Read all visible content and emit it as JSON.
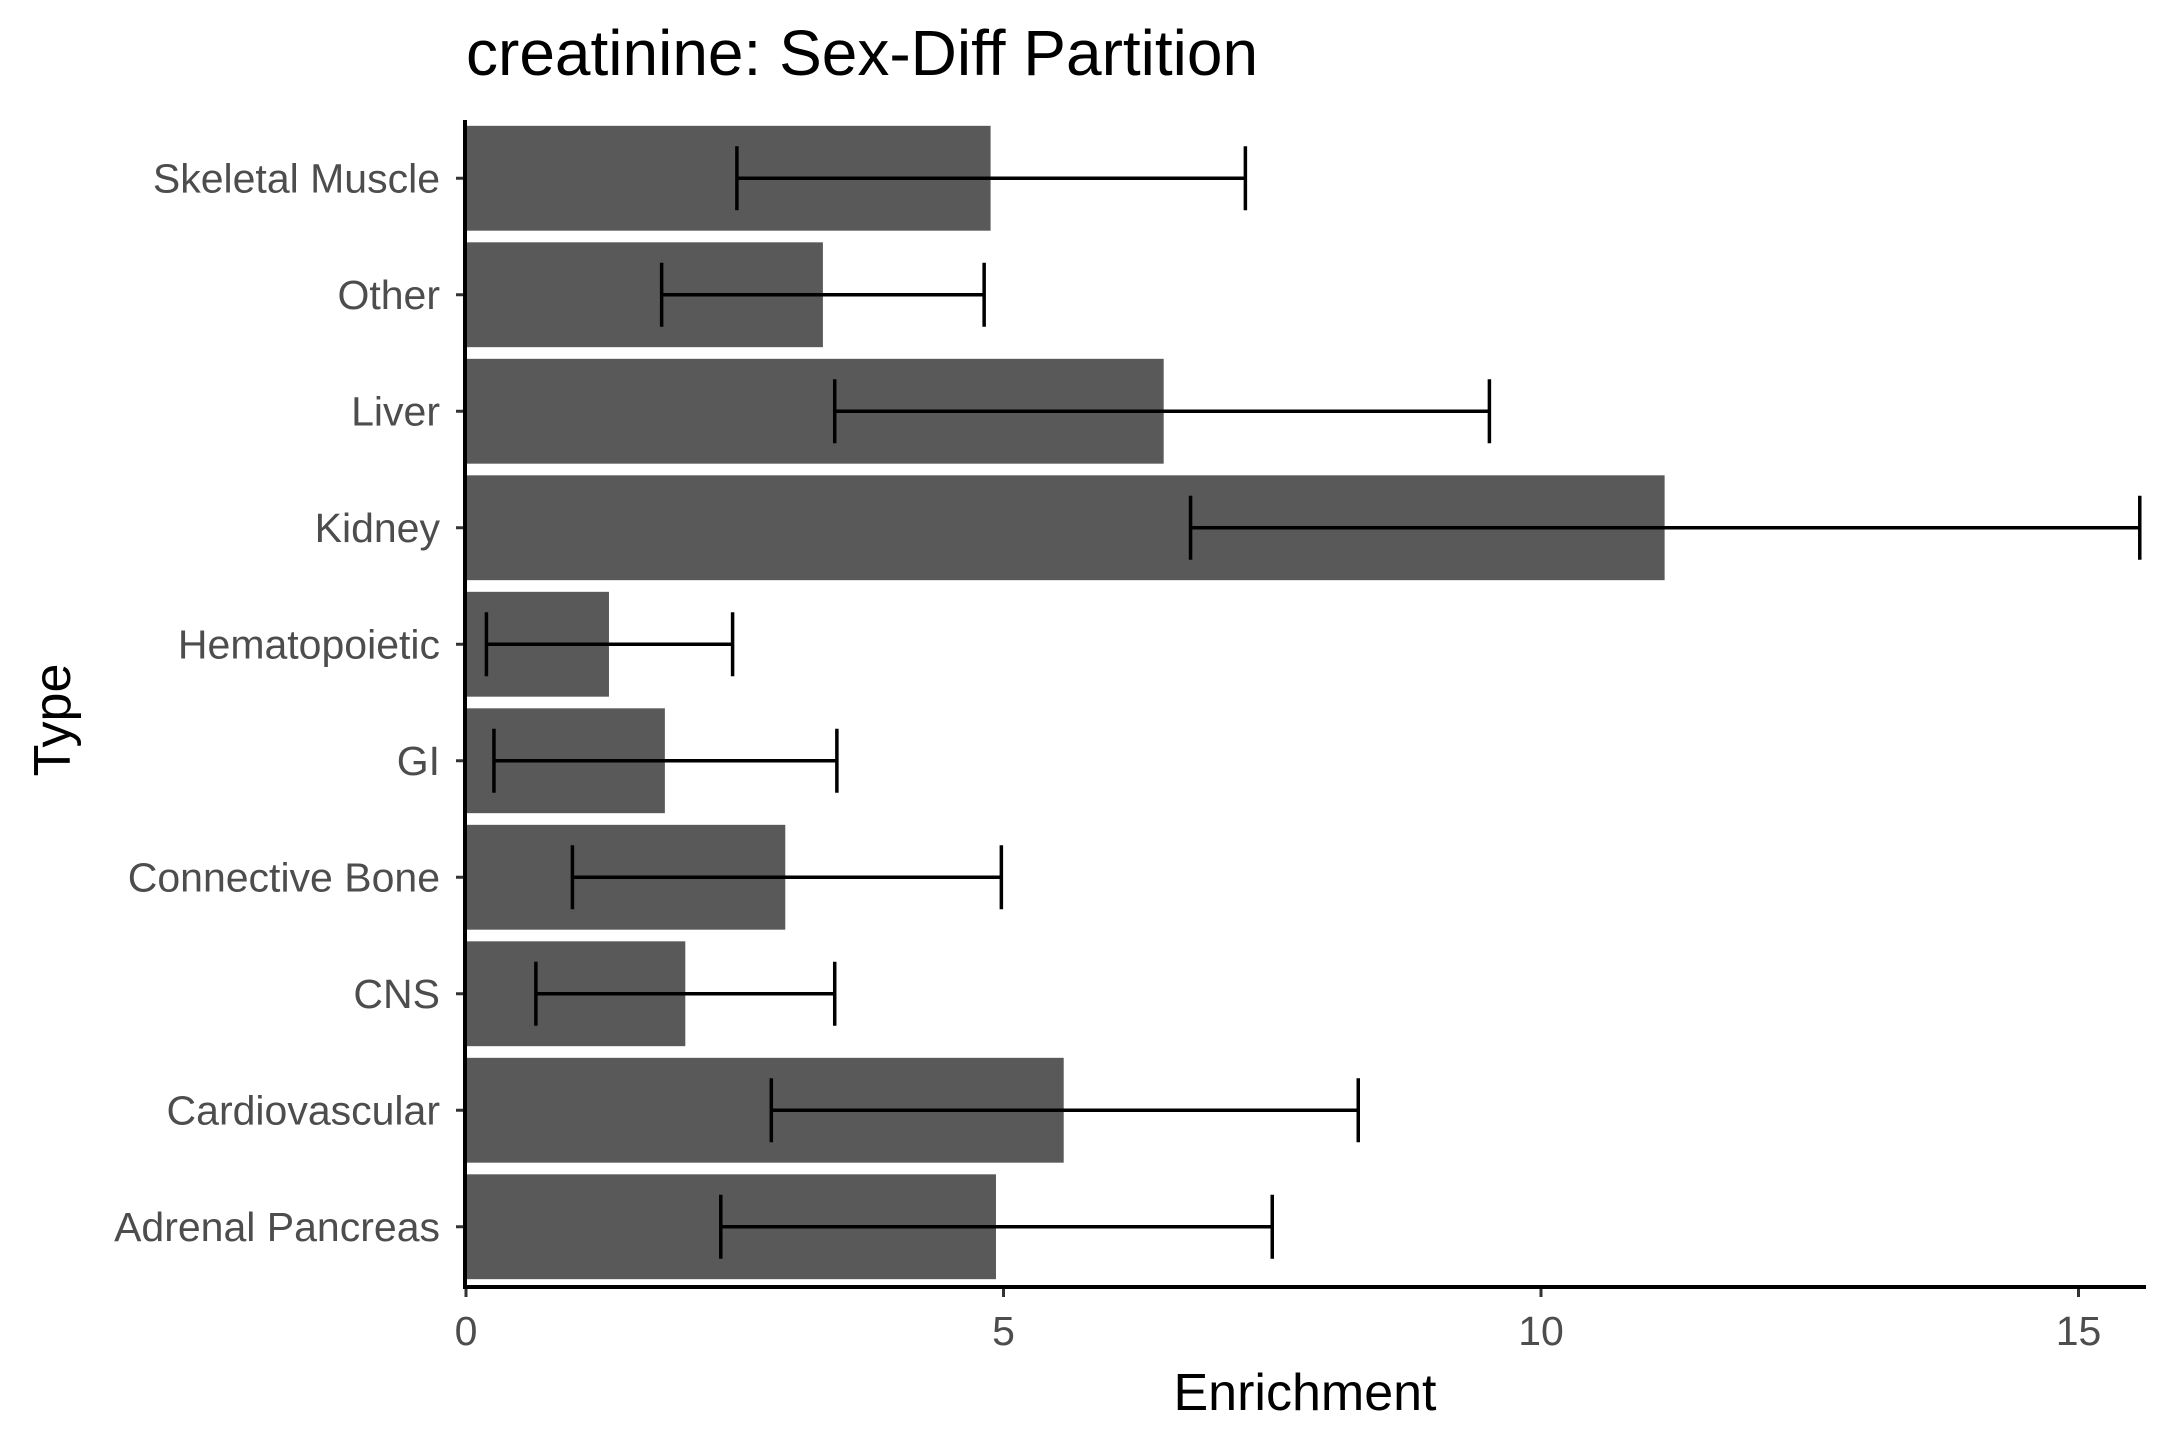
{
  "chart_data": {
    "type": "bar",
    "orientation": "horizontal",
    "title": "creatinine: Sex-Diff Partition",
    "xlabel": "Enrichment",
    "ylabel": "Type",
    "xlim": [
      0,
      15.6
    ],
    "xticks": [
      0,
      5,
      10,
      15
    ],
    "grid": false,
    "bar_color": "#595959",
    "categories": [
      "Adrenal Pancreas",
      "Cardiovascular",
      "CNS",
      "Connective Bone",
      "GI",
      "Hematopoietic",
      "Kidney",
      "Liver",
      "Other",
      "Skeletal Muscle"
    ],
    "values": [
      4.93,
      5.56,
      2.04,
      2.97,
      1.85,
      1.33,
      11.15,
      6.49,
      3.32,
      4.88
    ],
    "error_low": [
      2.37,
      2.84,
      0.65,
      0.99,
      0.26,
      0.19,
      6.74,
      3.43,
      1.82,
      2.52
    ],
    "error_high": [
      7.5,
      8.3,
      3.43,
      4.98,
      3.45,
      2.48,
      15.57,
      9.52,
      4.82,
      7.25
    ]
  }
}
